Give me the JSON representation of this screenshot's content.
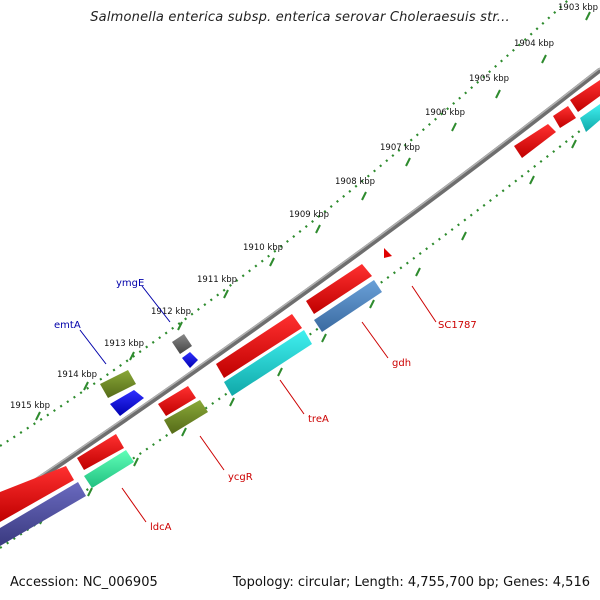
{
  "header": {
    "title": "Salmonella enterica subsp. enterica serovar Choleraesuis str..."
  },
  "footer": {
    "accession": "Accession: NC_006905",
    "summary": "Topology: circular; Length: 4,755,700 bp; Genes: 4,516"
  },
  "scale_labels": [
    "1903 kbp",
    "1904 kbp",
    "1905 kbp",
    "1906 kbp",
    "1907 kbp",
    "1908 kbp",
    "1909 kbp",
    "1910 kbp",
    "1911 kbp",
    "1912 kbp",
    "1913 kbp",
    "1914 kbp",
    "1915 kbp"
  ],
  "gene_labels": {
    "ymgE": "ymgE",
    "emtA": "emtA",
    "SC1787": "SC1787",
    "gdh": "gdh",
    "treA": "treA",
    "ycgR": "ycgR",
    "ldcA": "ldcA"
  },
  "colors": {
    "backbone": "#8a8a8a",
    "tick": "#2e8b2e",
    "red_label": "#cc0000",
    "blue_label": "#0000aa"
  }
}
